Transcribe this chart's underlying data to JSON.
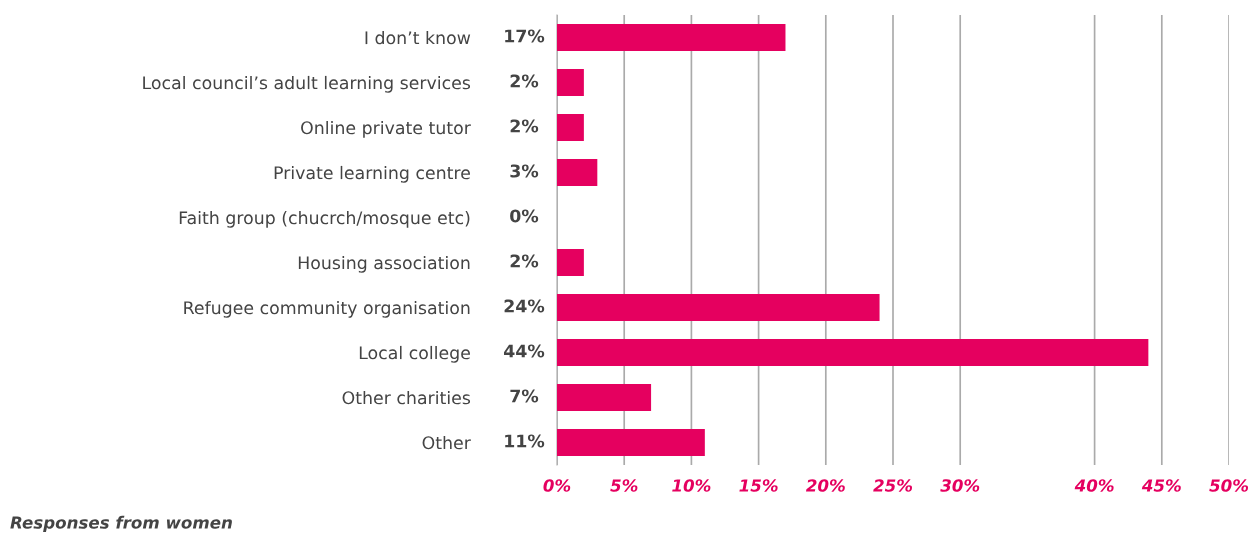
{
  "chart_data": {
    "type": "bar",
    "orientation": "horizontal",
    "categories": [
      "I don’t know",
      "Local council’s adult learning services",
      "Online private tutor",
      "Private learning centre",
      "Faith group (chucrch/mosque etc)",
      "Housing association",
      "Refugee community organisation",
      "Local college",
      "Other charities",
      "Other"
    ],
    "values": [
      17,
      2,
      2,
      3,
      0,
      2,
      24,
      44,
      7,
      11
    ],
    "value_labels": [
      "17%",
      "2%",
      "2%",
      "3%",
      "0%",
      "2%",
      "24%",
      "44%",
      "7%",
      "11%"
    ],
    "color": "#e5005f",
    "xlim": [
      0,
      50
    ],
    "xticks": [
      {
        "value": 0,
        "label": "0%"
      },
      {
        "value": 5,
        "label": "5%"
      },
      {
        "value": 10,
        "label": "10%"
      },
      {
        "value": 15,
        "label": "15%"
      },
      {
        "value": 20,
        "label": "20%"
      },
      {
        "value": 25,
        "label": "25%"
      },
      {
        "value": 30,
        "label": "30%"
      },
      {
        "value": 40,
        "label": "40%"
      },
      {
        "value": 45,
        "label": "45%"
      },
      {
        "value": 50,
        "label": "50%"
      }
    ],
    "grid": "x",
    "annotations": [
      "Responses from women"
    ]
  }
}
